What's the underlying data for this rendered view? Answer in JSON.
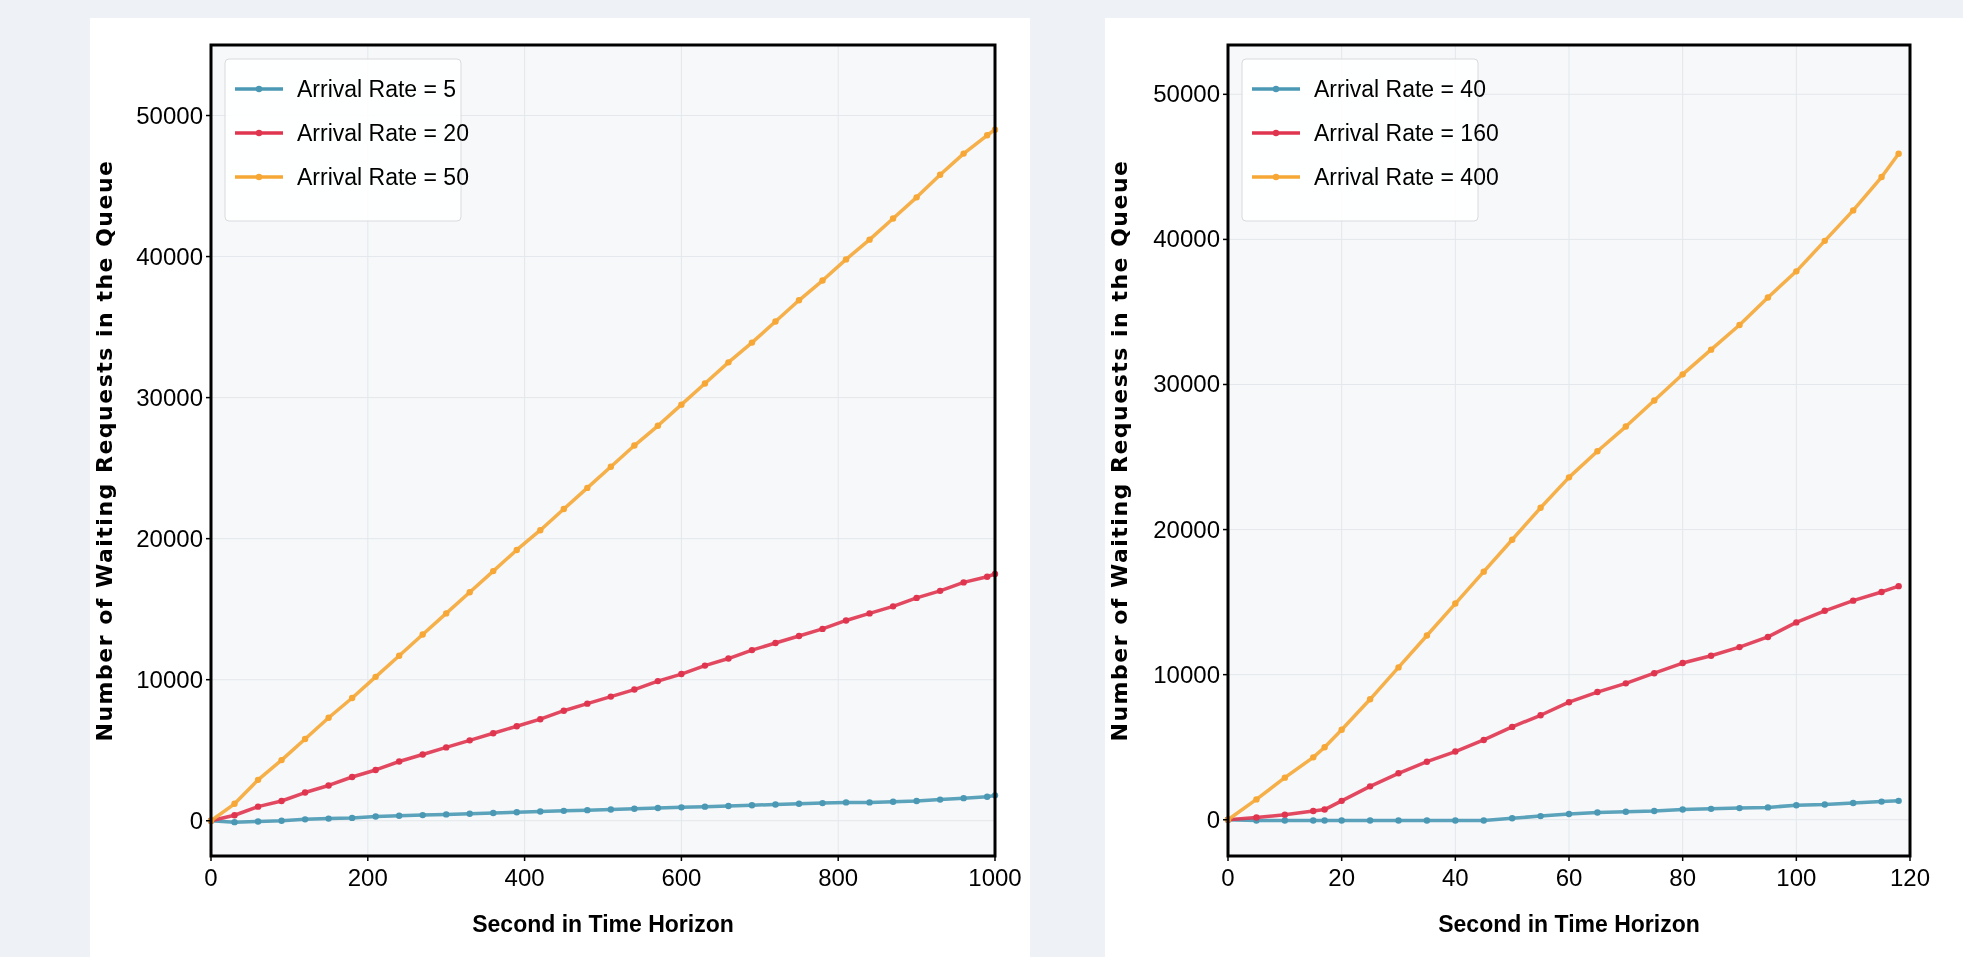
{
  "chart_data": [
    {
      "type": "line",
      "xlabel": "Second in Time Horizon",
      "ylabel": "Number of Waiting Requests in the Queue",
      "xlim": [
        0,
        1000
      ],
      "ylim": [
        -2500,
        55000
      ],
      "xticks": [
        0,
        200,
        400,
        600,
        800,
        1000
      ],
      "yticks": [
        0,
        10000,
        20000,
        30000,
        40000,
        50000
      ],
      "grid": true,
      "legend": "top left",
      "marker": "circle",
      "line_style": "solid",
      "x": [
        0,
        30,
        60,
        90,
        120,
        150,
        180,
        210,
        240,
        270,
        300,
        330,
        360,
        390,
        420,
        450,
        480,
        510,
        540,
        570,
        600,
        630,
        660,
        690,
        720,
        750,
        780,
        810,
        840,
        870,
        900,
        930,
        960,
        990,
        1000
      ],
      "series": [
        {
          "name": "Arrival Rate = 5",
          "color": "#4a98b4",
          "values": [
            0,
            -100,
            -50,
            0,
            100,
            150,
            200,
            300,
            350,
            400,
            450,
            500,
            550,
            600,
            650,
            700,
            750,
            800,
            850,
            900,
            950,
            1000,
            1050,
            1100,
            1150,
            1200,
            1250,
            1300,
            1300,
            1350,
            1400,
            1500,
            1600,
            1700,
            1800
          ]
        },
        {
          "name": "Arrival Rate = 20",
          "color": "#e0354f",
          "values": [
            0,
            390,
            1000,
            1400,
            2000,
            2500,
            3100,
            3600,
            4200,
            4700,
            5200,
            5700,
            6200,
            6700,
            7200,
            7800,
            8300,
            8800,
            9300,
            9900,
            10400,
            11000,
            11500,
            12100,
            12600,
            13100,
            13600,
            14200,
            14700,
            15200,
            15800,
            16300,
            16900,
            17300,
            17500
          ]
        },
        {
          "name": "Arrival Rate = 50",
          "color": "#f6a735",
          "values": [
            0,
            1200,
            2900,
            4300,
            5800,
            7300,
            8700,
            10200,
            11700,
            13200,
            14700,
            16200,
            17700,
            19200,
            20600,
            22100,
            23600,
            25100,
            26600,
            28000,
            29500,
            31000,
            32500,
            33900,
            35400,
            36900,
            38300,
            39800,
            41200,
            42700,
            44200,
            45800,
            47300,
            48600,
            49000
          ]
        }
      ]
    },
    {
      "type": "line",
      "xlabel": "Second in Time Horizon",
      "ylabel": "Number of Waiting Requests in the Queue",
      "xlim": [
        0,
        120
      ],
      "ylim": [
        -2500,
        53400
      ],
      "xticks": [
        0,
        20,
        40,
        60,
        80,
        100,
        120
      ],
      "yticks": [
        0,
        10000,
        20000,
        30000,
        40000,
        50000
      ],
      "grid": true,
      "legend": "top left",
      "marker": "circle",
      "line_style": "solid",
      "x": [
        0,
        5,
        10,
        15,
        17,
        20,
        25,
        30,
        35,
        40,
        45,
        50,
        55,
        60,
        65,
        70,
        75,
        80,
        85,
        90,
        95,
        100,
        105,
        110,
        115,
        118
      ],
      "series": [
        {
          "name": "Arrival Rate = 40",
          "color": "#4a98b4",
          "values": [
            0,
            -50,
            -50,
            -50,
            -50,
            -50,
            -50,
            -50,
            -50,
            -50,
            -50,
            100,
            250,
            400,
            500,
            550,
            600,
            700,
            750,
            800,
            850,
            1000,
            1050,
            1150,
            1250,
            1300
          ]
        },
        {
          "name": "Arrival Rate = 160",
          "color": "#e0354f",
          "values": [
            0,
            150,
            350,
            600,
            700,
            1300,
            2300,
            3200,
            4000,
            4700,
            5500,
            6400,
            7200,
            8100,
            8800,
            9400,
            10100,
            10800,
            11300,
            11900,
            12600,
            13600,
            14400,
            15100,
            15700,
            16100
          ]
        },
        {
          "name": "Arrival Rate = 400",
          "color": "#f6a735",
          "values": [
            0,
            1400,
            2900,
            4300,
            5000,
            6200,
            8300,
            10500,
            12700,
            14900,
            17100,
            19300,
            21500,
            23600,
            25400,
            27100,
            28900,
            30700,
            32400,
            34100,
            36000,
            37800,
            39900,
            42000,
            44300,
            45900
          ]
        }
      ]
    }
  ]
}
